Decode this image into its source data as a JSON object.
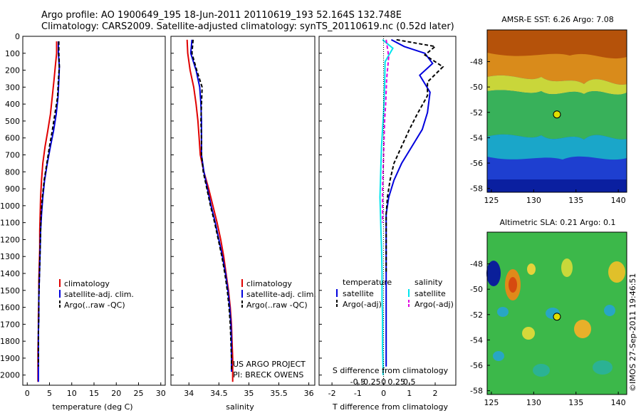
{
  "header": {
    "line1": "Argo profile: AO 1900649_195 18-Jun-2011 20110619_193 52.164S 132.748E",
    "line2": "Climatology: CARS2009. Satellite-adjusted climatology: synTS_20110619.nc (0.52d later)"
  },
  "colors": {
    "climatology": "#e00000",
    "satellite": "#0000dd",
    "argo": "#000000",
    "salinity_sat": "#00e5ee",
    "salinity_argo": "#e000e0"
  },
  "depth_axis": {
    "ticks": [
      0,
      100,
      200,
      300,
      400,
      500,
      600,
      700,
      800,
      900,
      1000,
      1100,
      1200,
      1300,
      1400,
      1500,
      1600,
      1700,
      1800,
      1900,
      2000
    ],
    "range": [
      0,
      2060
    ],
    "inverted": true
  },
  "panels": {
    "temperature": {
      "xlabel": "temperature (deg C)",
      "xlim": [
        -1,
        31
      ],
      "xticks": [
        "0",
        "5",
        "10",
        "15",
        "20",
        "25",
        "30"
      ],
      "legend": [
        "climatology",
        "satellite-adj. clim.",
        "Argo(..raw -QC)"
      ]
    },
    "salinity": {
      "xlabel": "salinity",
      "xlim": [
        33.7,
        36.1
      ],
      "xticks": [
        "34",
        "34.5",
        "35",
        "35.5",
        "36"
      ],
      "legend": [
        "climatology",
        "satellite-adj. clim.",
        "Argo(..raw -QC)"
      ],
      "note1": "US ARGO PROJECT",
      "note2": "PI: BRECK OWENS"
    },
    "difference": {
      "xlabel": "T difference from climatology",
      "xlabel2": "S difference from climatology",
      "xlim": [
        -2.5,
        2.8
      ],
      "xticks": [
        "-2",
        "-1",
        "0",
        "1",
        "2"
      ],
      "sticks": [
        "-0.5",
        "-0.25",
        "0",
        "0.25",
        "0.5"
      ],
      "legend_temp_title": "temperature",
      "legend_sal_title": "salinity",
      "legend_temp": [
        "satellite",
        "Argo(-adj)"
      ],
      "legend_sal": [
        "satellite",
        "Argo(-adj)"
      ]
    }
  },
  "maps": {
    "sst": {
      "title": "AMSR-E SST: 6.26 Argo: 7.08",
      "yticks": [
        "-48",
        "-50",
        "-52",
        "-54",
        "-56",
        "-58"
      ],
      "xticks": [
        "125",
        "130",
        "135",
        "140"
      ]
    },
    "sla": {
      "title": "Altimetric SLA: 0.21 Argo: 0.1",
      "yticks": [
        "-48",
        "-50",
        "-52",
        "-54",
        "-56",
        "-58"
      ],
      "xticks": [
        "125",
        "130",
        "135",
        "140"
      ]
    },
    "float_lon": 132.748,
    "float_lat": -52.164,
    "lon_range": [
      124.5,
      141
    ],
    "lat_range": [
      -58.3,
      -45.5
    ]
  },
  "credit": "©IMOS 27-Sep-2011 19:46:51",
  "chart_data": [
    {
      "type": "line",
      "title": "",
      "xlabel": "temperature (deg C)",
      "ylabel": "",
      "xlim": [
        -1,
        31
      ],
      "ylim": [
        2060,
        0
      ],
      "series": [
        {
          "name": "climatology",
          "x": [
            6.6,
            6.6,
            6.3,
            6.0,
            5.6,
            5.2,
            4.6,
            4.0,
            3.5,
            3.2,
            3.0,
            2.9,
            2.8,
            2.8,
            2.7,
            2.6,
            2.6,
            2.5,
            2.5,
            2.4,
            2.4,
            2.4
          ],
          "y": [
            30,
            100,
            180,
            260,
            360,
            460,
            560,
            650,
            750,
            850,
            950,
            1050,
            1150,
            1250,
            1350,
            1450,
            1550,
            1650,
            1750,
            1850,
            1950,
            2040
          ]
        },
        {
          "name": "satellite-adj. clim.",
          "x": [
            7.0,
            7.0,
            7.2,
            7.1,
            6.9,
            6.5,
            5.9,
            5.2,
            4.5,
            3.9,
            3.5,
            3.2,
            3.0,
            2.9,
            2.8,
            2.7,
            2.6,
            2.6,
            2.5,
            2.5,
            2.5,
            2.5
          ],
          "y": [
            30,
            100,
            180,
            260,
            360,
            460,
            560,
            650,
            750,
            850,
            950,
            1050,
            1150,
            1250,
            1350,
            1450,
            1550,
            1650,
            1750,
            1850,
            1950,
            2040
          ]
        },
        {
          "name": "Argo(..raw -QC)",
          "x": [
            7.1,
            7.1,
            7.2,
            7.0,
            6.8,
            6.2,
            5.6,
            5.0,
            4.4,
            3.8,
            3.4,
            3.1,
            3.0,
            2.9,
            2.8,
            2.7,
            2.6,
            2.6,
            2.5,
            2.5,
            2.5
          ],
          "y": [
            30,
            100,
            180,
            260,
            360,
            460,
            560,
            650,
            750,
            850,
            950,
            1050,
            1150,
            1250,
            1350,
            1450,
            1550,
            1650,
            1750,
            1850,
            1950
          ]
        }
      ]
    },
    {
      "type": "line",
      "title": "",
      "xlabel": "salinity",
      "ylabel": "",
      "xlim": [
        33.7,
        36.1
      ],
      "ylim": [
        2060,
        0
      ],
      "series": [
        {
          "name": "climatology",
          "x": [
            33.97,
            33.98,
            34.02,
            34.08,
            34.12,
            34.15,
            34.17,
            34.19,
            34.25,
            34.33,
            34.4,
            34.47,
            34.53,
            34.58,
            34.62,
            34.66,
            34.69,
            34.71,
            34.72,
            34.73,
            34.73,
            34.73
          ],
          "y": [
            20,
            100,
            200,
            300,
            400,
            500,
            600,
            700,
            800,
            900,
            1000,
            1100,
            1200,
            1300,
            1400,
            1500,
            1600,
            1700,
            1800,
            1900,
            1980,
            2040
          ]
        },
        {
          "name": "satellite-adj. clim.",
          "x": [
            34.05,
            34.03,
            34.12,
            34.18,
            34.2,
            34.21,
            34.21,
            34.21,
            34.25,
            34.31,
            34.37,
            34.44,
            34.5,
            34.56,
            34.61,
            34.65,
            34.68,
            34.7,
            34.71,
            34.71,
            34.71
          ],
          "y": [
            20,
            100,
            200,
            300,
            400,
            500,
            600,
            700,
            800,
            900,
            1000,
            1100,
            1200,
            1300,
            1400,
            1500,
            1600,
            1700,
            1800,
            1900,
            1980
          ]
        },
        {
          "name": "Argo(..raw -QC)",
          "x": [
            34.07,
            34.05,
            34.13,
            34.22,
            34.21,
            34.2,
            34.21,
            34.21,
            34.24,
            34.3,
            34.36,
            34.43,
            34.49,
            34.55,
            34.6,
            34.64,
            34.67,
            34.69,
            34.7,
            34.71,
            34.71
          ],
          "y": [
            20,
            100,
            200,
            300,
            400,
            500,
            600,
            700,
            800,
            900,
            1000,
            1100,
            1200,
            1300,
            1400,
            1500,
            1600,
            1700,
            1800,
            1900,
            1980
          ]
        }
      ]
    },
    {
      "type": "line",
      "title": "",
      "xlabel": "T difference from climatology",
      "xlabel2": "S difference from climatology",
      "ylabel": "",
      "xlim": [
        -2.5,
        2.8
      ],
      "ylim": [
        2060,
        0
      ],
      "series": [
        {
          "name": "temperature satellite",
          "x": [
            0.3,
            0.8,
            1.6,
            1.9,
            1.4,
            1.8,
            1.7,
            1.5,
            1.1,
            0.7,
            0.4,
            0.2,
            0.1,
            0.1,
            0.1,
            0.1,
            0.1,
            0.1,
            0.1,
            0.1,
            0.1
          ],
          "y": [
            20,
            60,
            100,
            160,
            230,
            330,
            450,
            550,
            650,
            750,
            850,
            950,
            1050,
            1150,
            1250,
            1350,
            1450,
            1550,
            1650,
            1750,
            1950
          ]
        },
        {
          "name": "temperature Argo(-adj)",
          "x": [
            0.5,
            2.0,
            1.6,
            2.3,
            1.7,
            1.7,
            1.3,
            1.0,
            0.7,
            0.4,
            0.25,
            0.15,
            0.1,
            0.1,
            0.1
          ],
          "y": [
            20,
            60,
            110,
            180,
            270,
            350,
            460,
            550,
            650,
            750,
            850,
            950,
            1050,
            1200,
            1400
          ]
        },
        {
          "name": "salinity satellite",
          "x": [
            -0.02,
            0.18,
            0.03,
            0.02,
            0.0,
            -0.02,
            -0.04,
            -0.05,
            -0.06,
            -0.07,
            -0.06,
            -0.05,
            -0.04,
            -0.03,
            -0.03,
            -0.02,
            -0.02,
            -0.02,
            -0.01,
            -0.01
          ],
          "y": [
            20,
            70,
            150,
            300,
            450,
            550,
            650,
            750,
            850,
            950,
            1050,
            1150,
            1250,
            1400,
            1550,
            1650,
            1750,
            1850,
            1950,
            2000
          ]
        },
        {
          "name": "salinity Argo(-adj)",
          "x": [
            0.05,
            0.1,
            0.06,
            0.04,
            0.02,
            0.01,
            0.0,
            -0.01,
            -0.02,
            -0.02,
            -0.02
          ],
          "y": [
            20,
            120,
            250,
            400,
            500,
            600,
            700,
            800,
            900,
            1000,
            1100
          ]
        }
      ]
    }
  ]
}
